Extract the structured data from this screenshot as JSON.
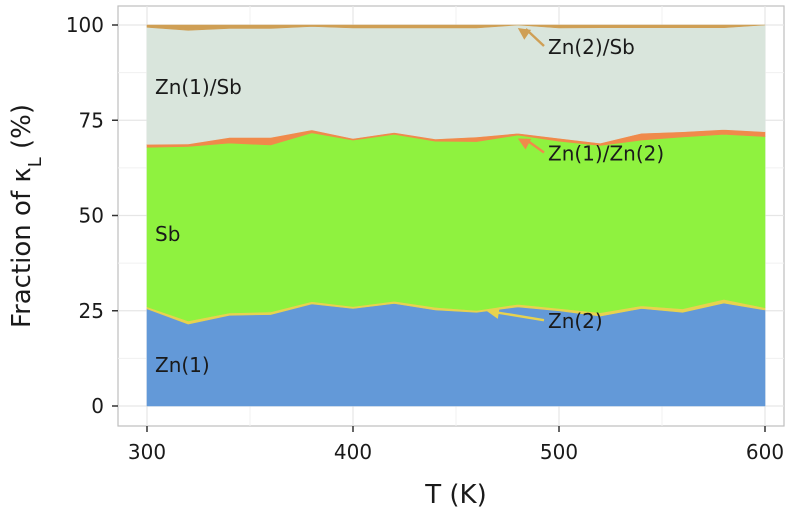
{
  "chart_data": {
    "type": "area",
    "stacked": true,
    "xlabel": "T (K)",
    "ylabel": "Fraction of κL (%)",
    "xlim": [
      300,
      600
    ],
    "ylim": [
      0,
      100
    ],
    "xticks": [
      "300",
      "400",
      "500",
      "600"
    ],
    "yticks": [
      "0",
      "25",
      "50",
      "75",
      "100"
    ],
    "grid": true,
    "x": [
      300,
      320,
      340,
      360,
      380,
      400,
      420,
      440,
      460,
      480,
      500,
      520,
      540,
      560,
      580,
      600
    ],
    "series": [
      {
        "name": "Zn(1)",
        "color": "#6399d8",
        "values": [
          25.5,
          21.5,
          23.8,
          24.0,
          26.8,
          25.6,
          26.9,
          25.2,
          24.6,
          26.0,
          25.0,
          23.6,
          25.6,
          24.6,
          27.0,
          25.2
        ]
      },
      {
        "name": "Zn(2)",
        "color": "#e8d24f",
        "values": [
          0.5,
          0.8,
          0.6,
          0.7,
          0.6,
          0.5,
          0.6,
          0.7,
          0.5,
          0.7,
          0.6,
          0.9,
          0.7,
          0.9,
          1.0,
          0.6
        ]
      },
      {
        "name": "Sb",
        "color": "#8ff23f",
        "values": [
          41.9,
          45.8,
          44.6,
          43.8,
          44.3,
          43.7,
          43.8,
          43.6,
          44.3,
          44.4,
          43.9,
          43.9,
          43.5,
          45.1,
          43.3,
          44.9
        ]
      },
      {
        "name": "Zn(1)/Zn(2)",
        "color": "#f08a4b",
        "values": [
          0.8,
          0.7,
          1.5,
          2.0,
          0.8,
          0.4,
          0.5,
          0.6,
          1.2,
          0.5,
          0.8,
          0.6,
          1.8,
          1.4,
          1.3,
          1.3
        ]
      },
      {
        "name": "Zn(1)/Sb",
        "color": "#d9e5dc",
        "values": [
          30.7,
          29.8,
          28.6,
          28.6,
          27.1,
          29.0,
          27.4,
          29.1,
          28.6,
          28.4,
          28.9,
          30.3,
          27.7,
          27.3,
          26.7,
          28.0
        ]
      },
      {
        "name": "Zn(2)/Sb",
        "color": "#cf9f55",
        "values": [
          0.6,
          1.4,
          0.9,
          0.9,
          0.4,
          0.8,
          0.8,
          0.8,
          0.8,
          0.0,
          0.8,
          0.7,
          0.7,
          0.7,
          0.7,
          0.0
        ]
      }
    ],
    "inline_labels": [
      "Zn(1)",
      "Sb",
      "Zn(1)/Sb"
    ],
    "annotations": [
      {
        "text": "Zn(2)/Sb",
        "target_series": "Zn(2)/Sb",
        "target_x": 480,
        "target_y": 99.2
      },
      {
        "text": "Zn(1)/Zn(2)",
        "target_series": "Zn(1)/Zn(2)",
        "target_x": 480,
        "target_y": 70.2
      },
      {
        "text": "Zn(2)",
        "target_series": "Zn(2)",
        "target_x": 465,
        "target_y": 24.9
      }
    ]
  }
}
